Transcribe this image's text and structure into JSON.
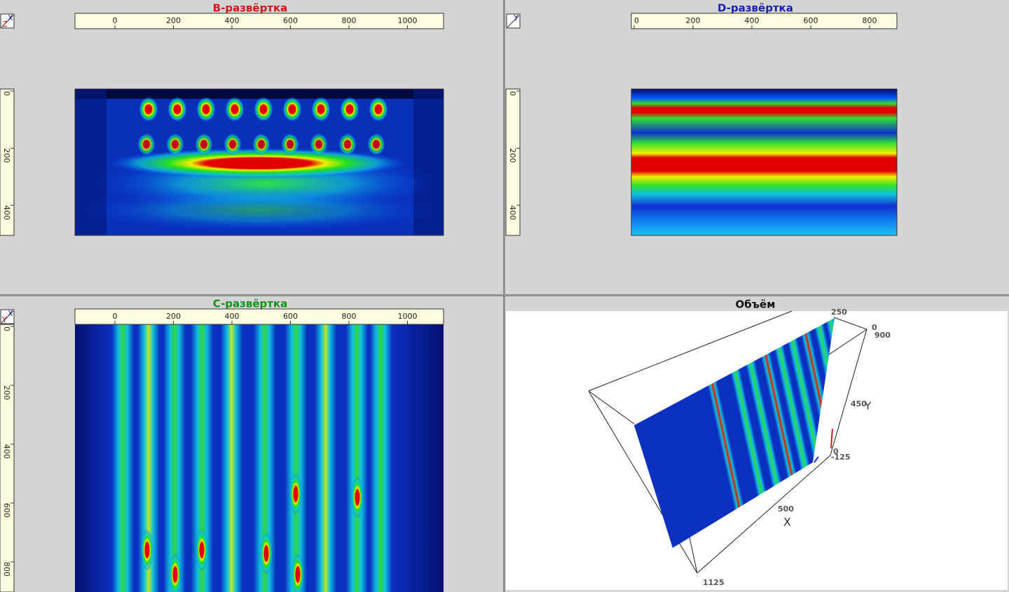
{
  "panels": [
    {
      "title": "B-развёртка",
      "corner": [
        "X",
        "Z"
      ],
      "top_ticks": [
        0,
        200,
        400,
        600,
        800,
        1000
      ],
      "left_ticks": [
        0,
        200,
        400
      ]
    },
    {
      "title": "D-развёртка",
      "corner": [
        "Y"
      ],
      "top_ticks": [
        0,
        200,
        400,
        600,
        800
      ],
      "left_ticks": [
        0,
        200,
        400
      ]
    },
    {
      "title": "C-развёртка",
      "corner": [
        "X",
        "Y"
      ],
      "top_ticks": [
        0,
        200,
        400,
        600,
        800,
        1000
      ],
      "left_ticks": [
        0,
        200,
        400,
        600,
        800
      ]
    },
    {
      "title": "Объём",
      "labels": [
        "250",
        "0",
        "900",
        "450",
        "Y",
        "0",
        "-125",
        "500",
        "X",
        "1125"
      ]
    }
  ]
}
